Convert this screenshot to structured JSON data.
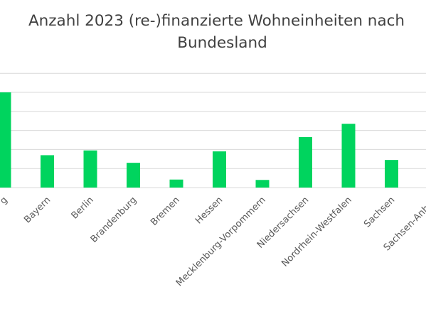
{
  "chart_data": {
    "type": "bar",
    "title": "Anzahl 2023 (re-)finanzierte Wohneinheiten nach Bundesland",
    "title_lines": [
      "Anzahl 2023 (re-)finanzierte Wohneinheiten nach",
      "Bundesland"
    ],
    "categories": [
      "Baden-Württemberg",
      "Bayern",
      "Berlin",
      "Brandenburg",
      "Bremen",
      "Hessen",
      "Mecklenburg-Vorpommern",
      "Niedersachsen",
      "Nordrhein-Westfalen",
      "Sachsen",
      "Sachsen-Anhalt"
    ],
    "visible_labels": [
      "g",
      "Bayern",
      "Berlin",
      "Brandenburg",
      "Bremen",
      "Hessen",
      "Mecklenburg-Vorpommern",
      "Niedersachsen",
      "Nordrhein-Westfalen",
      "Sachsen",
      "Sachsen-Anhalt"
    ],
    "values": [
      5.0,
      1.7,
      1.95,
      1.3,
      0.42,
      1.9,
      0.4,
      2.65,
      3.35,
      1.45,
      0
    ],
    "ylim": [
      0,
      6
    ],
    "grid": true,
    "legend": "none",
    "bar_color": "#00D45E",
    "grid_color": "#D9D9D9"
  }
}
